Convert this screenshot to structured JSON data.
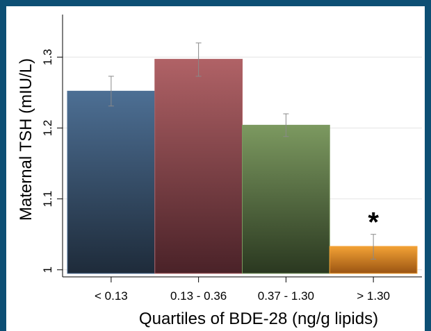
{
  "chart_data": {
    "type": "bar",
    "title": "",
    "xlabel": "Quartiles of BDE-28 (ng/g lipids)",
    "ylabel": "Maternal TSH (mIU/L)",
    "categories": [
      "< 0.13",
      "0.13 - 0.36",
      "0.37 - 1.30",
      "> 1.30"
    ],
    "values": [
      1.252,
      1.297,
      1.204,
      1.033
    ],
    "error_low": [
      1.231,
      1.273,
      1.188,
      1.015
    ],
    "error_high": [
      1.273,
      1.32,
      1.22,
      1.05
    ],
    "bar_colors_top": [
      "#4d6f94",
      "#b06266",
      "#7c9960",
      "#f3a235"
    ],
    "bar_colors_bottom": [
      "#1e2b3a",
      "#4a2228",
      "#2a3820",
      "#9a5412"
    ],
    "ylim": [
      0.99,
      1.36
    ],
    "yticks": [
      1.0,
      1.1,
      1.2,
      1.3
    ],
    "ytick_labels": [
      "1",
      "1.1",
      "1.2",
      "1.3"
    ],
    "grid": true,
    "annotations": [
      {
        "text": "*",
        "category": "> 1.30"
      }
    ]
  }
}
